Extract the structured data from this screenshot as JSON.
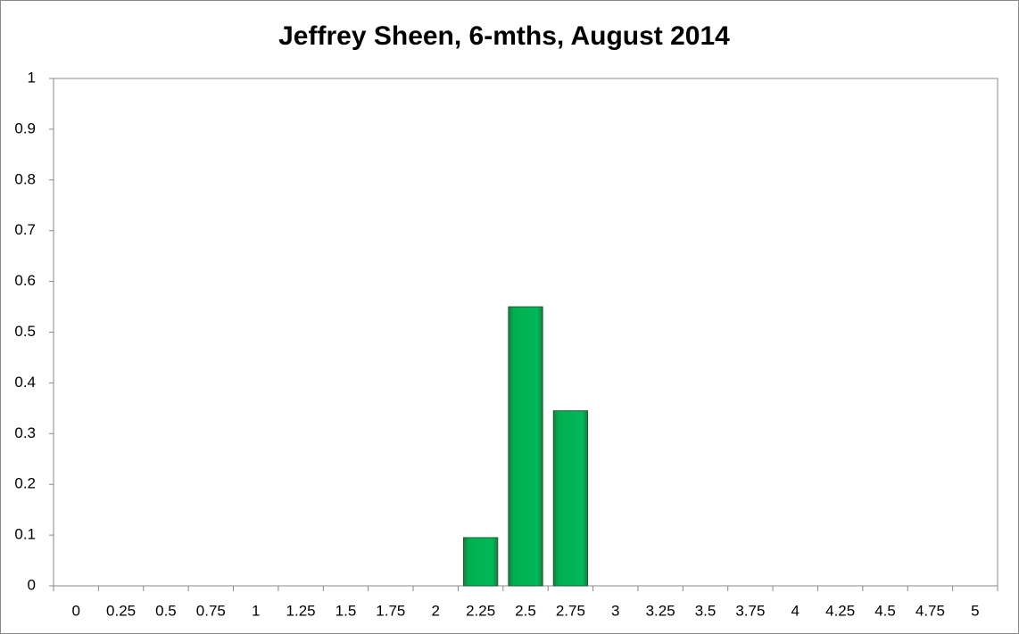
{
  "chart_data": {
    "type": "bar",
    "title": "Jeffrey Sheen, 6-mths, August 2014",
    "categories": [
      "0",
      "0.25",
      "0.5",
      "0.75",
      "1",
      "1.25",
      "1.5",
      "1.75",
      "2",
      "2.25",
      "2.5",
      "2.75",
      "3",
      "3.25",
      "3.5",
      "3.75",
      "4",
      "4.25",
      "4.5",
      "4.75",
      "5"
    ],
    "values": [
      0,
      0,
      0,
      0,
      0,
      0,
      0,
      0,
      0,
      0.095,
      0.55,
      0.345,
      0,
      0,
      0,
      0,
      0,
      0,
      0,
      0,
      0
    ],
    "color": "#00b050",
    "ylim": [
      0,
      1
    ],
    "yticks": [
      0,
      0.1,
      0.2,
      0.3,
      0.4,
      0.5,
      0.6,
      0.7,
      0.8,
      0.9,
      1
    ],
    "grid": false
  }
}
